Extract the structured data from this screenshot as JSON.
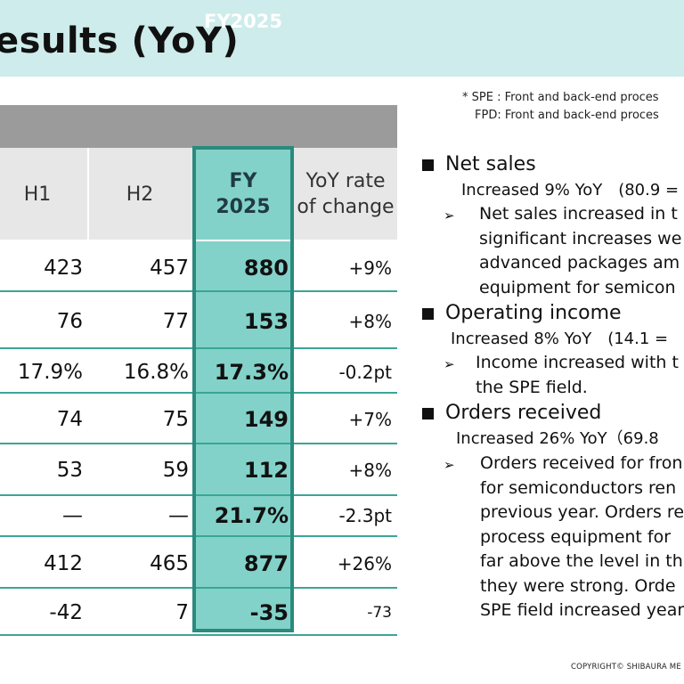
{
  "title": "esults (YoY)",
  "table": {
    "period_header": "FY2025",
    "columns": {
      "h1": "H1",
      "h2": "H2",
      "fy_line1": "FY",
      "fy_line2": "2025",
      "yoy_line1": "YoY rate",
      "yoy_line2": "of change"
    },
    "rows": [
      {
        "h1": "423",
        "h2": "457",
        "fy": "880",
        "yoy": "+9%"
      },
      {
        "h1": "76",
        "h2": "77",
        "fy": "153",
        "yoy": "+8%"
      },
      {
        "h1": "17.9%",
        "h2": "16.8%",
        "fy": "17.3%",
        "yoy": "-0.2pt"
      },
      {
        "h1": "74",
        "h2": "75",
        "fy": "149",
        "yoy": "+7%"
      },
      {
        "h1": "53",
        "h2": "59",
        "fy": "112",
        "yoy": "+8%"
      },
      {
        "h1": "—",
        "h2": "—",
        "fy": "21.7%",
        "yoy": "-2.3pt"
      },
      {
        "h1": "412",
        "h2": "465",
        "fy": "877",
        "yoy": "+26%"
      },
      {
        "h1": "-42",
        "h2": "7",
        "fy": "-35",
        "yoy": "-73"
      }
    ]
  },
  "footnotes": [
    "* SPE : Front and back-end proces",
    "FPD: Front and back-end proces"
  ],
  "sections": [
    {
      "heading": "Net sales",
      "summary": "Increased 9% YoY　(80.9 =",
      "details": [
        "Net sales increased in t",
        "significant increases we",
        "advanced packages am",
        "equipment for semicon"
      ]
    },
    {
      "heading": "Operating income",
      "summary": "Increased 8% YoY　(14.1 =",
      "details": [
        "Income increased with t",
        "the SPE field."
      ]
    },
    {
      "heading": "Orders received",
      "summary": "Increased 26% YoY（69.8",
      "details": [
        "Orders received for fron",
        "for semiconductors ren",
        "previous year. Orders re",
        "process equipment for",
        "far above the level in th",
        "they were strong. Orde",
        "SPE field increased year"
      ]
    }
  ],
  "arrow_glyph": "➢",
  "copyright": "COPYRIGHT© SHIBAURA ME"
}
